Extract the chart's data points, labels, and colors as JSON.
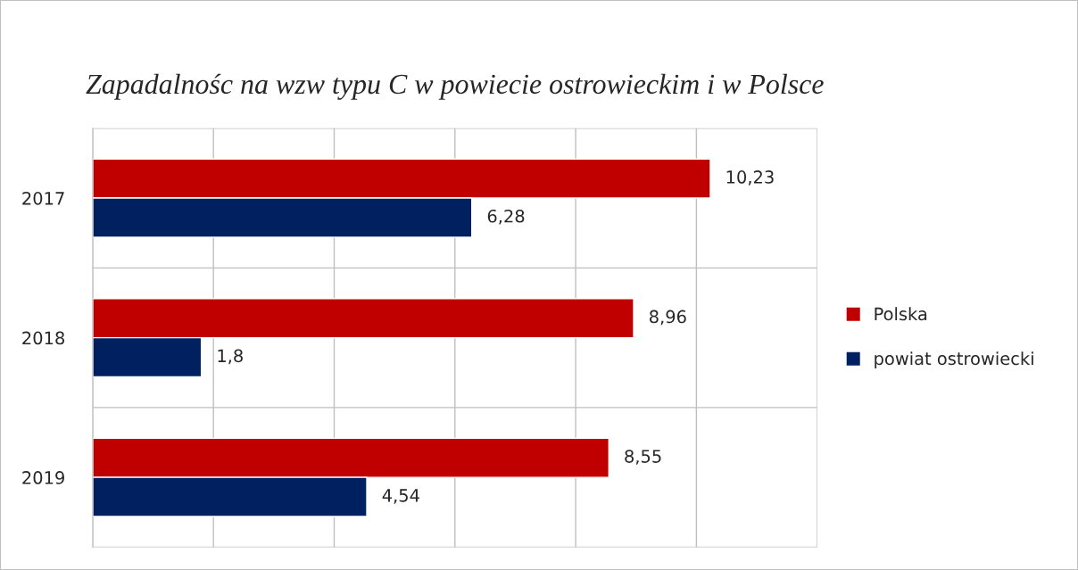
{
  "chart_data": {
    "type": "bar",
    "orientation": "horizontal",
    "title": "Zapadalnośc na wzw typu C w powiecie ostrowieckim i w Polsce",
    "categories": [
      "2017",
      "2018",
      "2019"
    ],
    "series": [
      {
        "name": "Polska",
        "color": "#c00000",
        "values": [
          10.23,
          8.96,
          8.55
        ],
        "value_labels": [
          "10,23",
          "8,96",
          "8,55"
        ]
      },
      {
        "name": "powiat ostrowiecki",
        "color": "#002060",
        "values": [
          6.28,
          1.8,
          4.54
        ],
        "value_labels": [
          "6,28",
          "1,8",
          "4,54"
        ]
      }
    ],
    "xlim": [
      0,
      12
    ],
    "xticks": [
      {
        "value": 0,
        "label": null
      },
      {
        "value": 2,
        "label": null
      },
      {
        "value": 4,
        "label": null
      },
      {
        "value": 6,
        "label": null
      },
      {
        "value": 8,
        "label": null
      },
      {
        "value": 10,
        "label": null
      },
      {
        "value": 12,
        "label": null
      }
    ],
    "tick_labels": "y",
    "grid": true,
    "legend": "right"
  }
}
